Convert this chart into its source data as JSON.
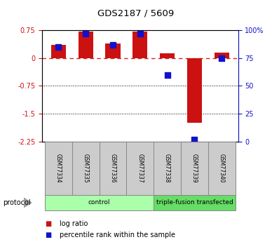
{
  "title": "GDS2187 / 5609",
  "samples": [
    "GSM77334",
    "GSM77335",
    "GSM77336",
    "GSM77337",
    "GSM77338",
    "GSM77339",
    "GSM77340"
  ],
  "log_ratio": [
    0.35,
    0.72,
    0.4,
    0.72,
    0.12,
    -1.75,
    0.15
  ],
  "percentile_rank": [
    85,
    97,
    87,
    97,
    60,
    2,
    75
  ],
  "ylim_left": [
    -2.25,
    0.75
  ],
  "ylim_right": [
    0,
    100
  ],
  "yticks_left": [
    0.75,
    0,
    -0.75,
    -1.5,
    -2.25
  ],
  "yticks_right": [
    100,
    75,
    50,
    25,
    0
  ],
  "hlines_dotted": [
    -0.75,
    -1.5
  ],
  "bar_color": "#cc1111",
  "percentile_color": "#1111cc",
  "zero_line_color": "#cc1111",
  "sample_box_color": "#cccccc",
  "group_colors": [
    "#aaffaa",
    "#66dd66"
  ],
  "group_labels": [
    "control",
    "triple-fusion transfected"
  ],
  "group_sample_counts": [
    4,
    3
  ],
  "protocol_label": "protocol",
  "legend_log_ratio": "log ratio",
  "legend_percentile": "percentile rank within the sample",
  "bar_width": 0.55,
  "figsize": [
    3.88,
    3.45
  ],
  "dpi": 100
}
